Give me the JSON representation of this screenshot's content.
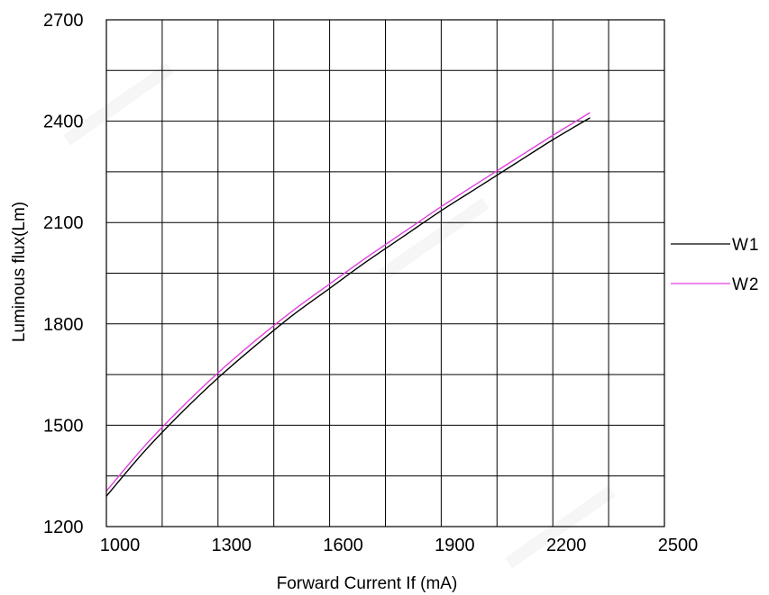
{
  "chart_data": {
    "type": "line",
    "title": "",
    "xlabel": "Forward Current  If (mA)",
    "ylabel": "Luminous flux(Lm)",
    "xlim": [
      1000,
      2500
    ],
    "ylim": [
      1200,
      2700
    ],
    "x_tick_labels": [
      "1000",
      "1300",
      "1600",
      "1900",
      "2200",
      "2500"
    ],
    "y_tick_labels": [
      "1200",
      "1500",
      "1800",
      "2100",
      "2400",
      "2700"
    ],
    "grid": true,
    "legend_position": "right",
    "series": [
      {
        "name": "W1",
        "color": "#000000",
        "x": [
          1000,
          1100,
          1200,
          1300,
          1400,
          1500,
          1600,
          1700,
          1800,
          1900,
          2000,
          2100,
          2200,
          2300
        ],
        "y": [
          1290,
          1420,
          1535,
          1640,
          1735,
          1825,
          1905,
          1985,
          2060,
          2135,
          2205,
          2275,
          2345,
          2410
        ]
      },
      {
        "name": "W2",
        "color": "#e040e0",
        "x": [
          1000,
          1100,
          1200,
          1300,
          1400,
          1500,
          1600,
          1700,
          1800,
          1900,
          2000,
          2100,
          2200,
          2300
        ],
        "y": [
          1305,
          1435,
          1550,
          1655,
          1750,
          1838,
          1918,
          1997,
          2072,
          2147,
          2218,
          2288,
          2358,
          2425
        ]
      }
    ]
  }
}
